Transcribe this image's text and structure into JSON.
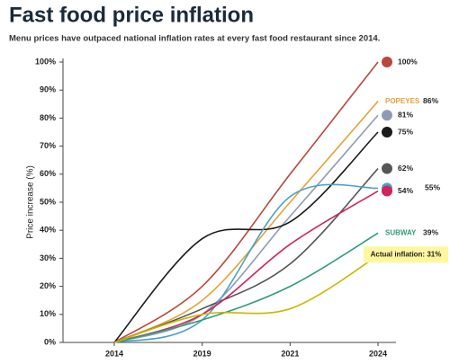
{
  "chart_data": {
    "type": "line",
    "title": "Fast food price inflation",
    "subtitle": "Menu prices have outpaced national inflation rates at every fast food restaurant since 2014.",
    "y_label": "Price increase (%)",
    "categories": [
      "2014",
      "2019",
      "2021",
      "2024"
    ],
    "ylim": [
      0,
      100
    ],
    "yticks": [
      {
        "value": 0,
        "label": "0%"
      },
      {
        "value": 10,
        "label": "10%"
      },
      {
        "value": 20,
        "label": "20%"
      },
      {
        "value": 30,
        "label": "30%"
      },
      {
        "value": 40,
        "label": "40%"
      },
      {
        "value": 50,
        "label": "50%"
      },
      {
        "value": 60,
        "label": "60%"
      },
      {
        "value": 70,
        "label": "70%"
      },
      {
        "value": 80,
        "label": "80%"
      },
      {
        "value": 90,
        "label": "90%"
      },
      {
        "value": 100,
        "label": "100%"
      }
    ],
    "series": [
      {
        "color": "#b8473d",
        "values": [
          0,
          20,
          60,
          100
        ],
        "end_label": "100%"
      },
      {
        "name": "POPEYES",
        "color": "#e3a23a",
        "values": [
          0,
          15,
          50,
          86
        ],
        "end_label": "86%"
      },
      {
        "color": "#8e9cb3",
        "values": [
          0,
          10,
          45,
          81
        ],
        "end_label": "81%"
      },
      {
        "color": "#1a1a1a",
        "values": [
          0,
          37,
          43,
          75
        ],
        "end_label": "75%"
      },
      {
        "color": "#555555",
        "values": [
          0,
          12,
          28,
          62
        ],
        "end_label": "62%"
      },
      {
        "color": "#4aa0c8",
        "values": [
          0,
          8,
          52,
          55
        ],
        "end_label": "55%"
      },
      {
        "color": "#d0245e",
        "values": [
          0,
          10,
          35,
          54
        ],
        "end_label": "54%"
      },
      {
        "name": "SUBWAY",
        "color": "#2f9c78",
        "values": [
          0,
          8,
          20,
          39
        ],
        "end_label": "39%"
      },
      {
        "color": "#c9b800",
        "values": [
          0,
          10,
          12,
          31
        ],
        "end_label": "Actual inflation: 31%"
      }
    ]
  }
}
